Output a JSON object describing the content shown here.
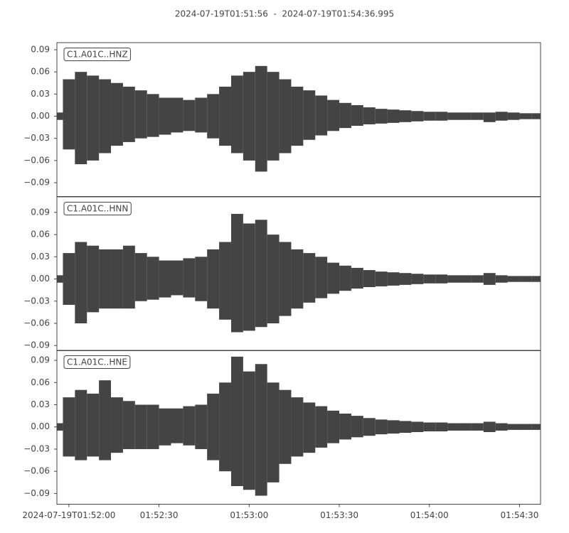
{
  "chart_data": {
    "type": "waveform",
    "title": "2024-07-19T01:51:56  -  2024-07-19T01:54:36.995",
    "x": [
      0,
      4,
      8,
      12,
      16,
      20,
      24,
      28,
      32,
      36,
      40,
      44,
      48,
      52,
      56,
      60,
      64,
      68,
      72,
      76,
      80,
      84,
      88,
      92,
      96,
      100,
      104,
      108,
      112,
      116,
      120,
      124,
      128,
      132,
      136,
      140,
      144,
      148,
      152,
      156,
      160
    ],
    "xlim": [
      0,
      160.995
    ],
    "xticks": [
      {
        "value": 4,
        "label": "2024-07-19T01:52:00"
      },
      {
        "value": 34,
        "label": "01:52:30"
      },
      {
        "value": 64,
        "label": "01:53:00"
      },
      {
        "value": 94,
        "label": "01:53:30"
      },
      {
        "value": 124,
        "label": "01:54:00"
      },
      {
        "value": 154,
        "label": "01:54:30"
      }
    ],
    "panels": [
      {
        "ylim": [
          -0.1087,
          0.0996
        ],
        "yticks": [
          0.09,
          0.06,
          0.03,
          {
            "value": 0,
            "label": "0.00"
          },
          {
            "value": -0.03,
            "label": "−0.03"
          },
          {
            "value": -0.06,
            "label": "−0.06"
          },
          {
            "value": -0.09,
            "label": "−0.09"
          }
        ],
        "series": [
          {
            "name": "C1.A01C..HNZ",
            "color": "#444444",
            "max": [
              0.005,
              0.05,
              0.06,
              0.055,
              0.05,
              0.045,
              0.04,
              0.035,
              0.03,
              0.025,
              0.025,
              0.022,
              0.025,
              0.03,
              0.04,
              0.055,
              0.06,
              0.068,
              0.06,
              0.05,
              0.04,
              0.035,
              0.028,
              0.022,
              0.018,
              0.015,
              0.012,
              0.01,
              0.009,
              0.008,
              0.007,
              0.006,
              0.006,
              0.005,
              0.005,
              0.005,
              0.005,
              0.006,
              0.005,
              0.004,
              0.004
            ],
            "min": [
              -0.005,
              -0.045,
              -0.065,
              -0.06,
              -0.05,
              -0.04,
              -0.035,
              -0.03,
              -0.028,
              -0.025,
              -0.022,
              -0.02,
              -0.022,
              -0.03,
              -0.04,
              -0.05,
              -0.06,
              -0.075,
              -0.06,
              -0.05,
              -0.04,
              -0.032,
              -0.026,
              -0.02,
              -0.016,
              -0.013,
              -0.011,
              -0.01,
              -0.009,
              -0.008,
              -0.007,
              -0.006,
              -0.006,
              -0.005,
              -0.005,
              -0.005,
              -0.008,
              -0.006,
              -0.005,
              -0.004,
              -0.004
            ]
          }
        ]
      },
      {
        "ylim": [
          -0.097,
          0.111
        ],
        "yticks": [
          0.09,
          0.06,
          0.03,
          {
            "value": 0,
            "label": "0.00"
          },
          {
            "value": -0.03,
            "label": "−0.03"
          },
          {
            "value": -0.06,
            "label": "−0.06"
          },
          {
            "value": -0.09,
            "label": "−0.09"
          }
        ],
        "series": [
          {
            "name": "C1.A01C..HNN",
            "color": "#444444",
            "max": [
              0.005,
              0.035,
              0.05,
              0.045,
              0.04,
              0.04,
              0.045,
              0.035,
              0.03,
              0.025,
              0.025,
              0.028,
              0.03,
              0.04,
              0.05,
              0.088,
              0.075,
              0.08,
              0.06,
              0.05,
              0.04,
              0.035,
              0.03,
              0.022,
              0.018,
              0.015,
              0.012,
              0.01,
              0.009,
              0.008,
              0.007,
              0.006,
              0.006,
              0.005,
              0.005,
              0.005,
              0.008,
              0.005,
              0.004,
              0.004,
              0.004
            ],
            "min": [
              -0.005,
              -0.035,
              -0.06,
              -0.045,
              -0.04,
              -0.04,
              -0.04,
              -0.03,
              -0.028,
              -0.025,
              -0.022,
              -0.025,
              -0.03,
              -0.04,
              -0.055,
              -0.072,
              -0.07,
              -0.065,
              -0.06,
              -0.05,
              -0.04,
              -0.032,
              -0.026,
              -0.02,
              -0.016,
              -0.013,
              -0.011,
              -0.01,
              -0.009,
              -0.008,
              -0.007,
              -0.006,
              -0.006,
              -0.005,
              -0.005,
              -0.005,
              -0.008,
              -0.005,
              -0.004,
              -0.004,
              -0.004
            ]
          }
        ]
      },
      {
        "ylim": [
          -0.1045,
          0.1035
        ],
        "yticks": [
          0.09,
          0.06,
          0.03,
          {
            "value": 0,
            "label": "0.00"
          },
          {
            "value": -0.03,
            "label": "−0.03"
          },
          {
            "value": -0.06,
            "label": "−0.06"
          },
          {
            "value": -0.09,
            "label": "−0.09"
          }
        ],
        "series": [
          {
            "name": "C1.A01C..HNE",
            "color": "#444444",
            "max": [
              0.005,
              0.04,
              0.05,
              0.045,
              0.063,
              0.04,
              0.035,
              0.03,
              0.03,
              0.025,
              0.025,
              0.028,
              0.03,
              0.045,
              0.06,
              0.095,
              0.075,
              0.085,
              0.06,
              0.05,
              0.04,
              0.033,
              0.028,
              0.022,
              0.018,
              0.015,
              0.012,
              0.01,
              0.009,
              0.008,
              0.007,
              0.006,
              0.006,
              0.005,
              0.005,
              0.005,
              0.007,
              0.005,
              0.004,
              0.004,
              0.004
            ],
            "min": [
              -0.005,
              -0.04,
              -0.045,
              -0.04,
              -0.045,
              -0.035,
              -0.03,
              -0.03,
              -0.03,
              -0.025,
              -0.022,
              -0.025,
              -0.03,
              -0.045,
              -0.06,
              -0.08,
              -0.085,
              -0.093,
              -0.075,
              -0.05,
              -0.04,
              -0.035,
              -0.028,
              -0.022,
              -0.017,
              -0.014,
              -0.012,
              -0.01,
              -0.009,
              -0.008,
              -0.007,
              -0.006,
              -0.006,
              -0.005,
              -0.005,
              -0.005,
              -0.007,
              -0.005,
              -0.004,
              -0.004,
              -0.004
            ]
          }
        ]
      }
    ]
  }
}
